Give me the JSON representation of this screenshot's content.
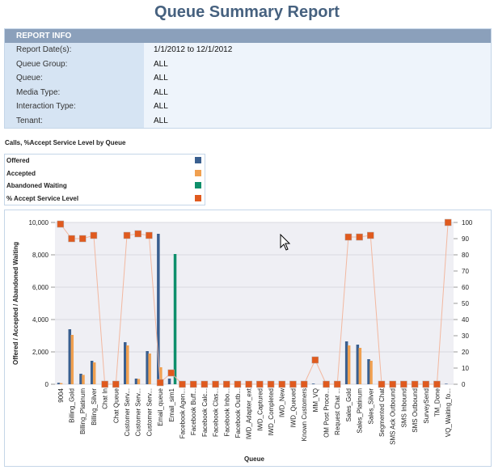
{
  "page": {
    "title": "Queue Summary Report"
  },
  "report_info": {
    "header": "REPORT INFO",
    "rows": [
      {
        "label": "Report Date(s):",
        "value": "1/1/2012  to  12/1/2012"
      },
      {
        "label": "Queue Group:",
        "value": "ALL"
      },
      {
        "label": "Queue:",
        "value": "ALL"
      },
      {
        "label": "Media Type:",
        "value": "ALL"
      },
      {
        "label": "Interaction Type:",
        "value": "ALL"
      },
      {
        "label": "Tenant:",
        "value": "ALL"
      }
    ]
  },
  "chart_data": {
    "type": "bar",
    "title": "Calls, %Accept Service Level by Queue",
    "xlabel": "Queue",
    "ylabel": "Offered / Accepted / Abandoned Waiting",
    "ylim": [
      0,
      10000
    ],
    "y2lim": [
      0,
      100
    ],
    "yticks": [
      "0",
      "2,000",
      "4,000",
      "6,000",
      "8,000",
      "10,000"
    ],
    "y2ticks": [
      "0",
      "10",
      "20",
      "30",
      "40",
      "50",
      "60",
      "70",
      "80",
      "90",
      "100"
    ],
    "grid": true,
    "legend": [
      {
        "name": "Offered",
        "color": "#3a5f8f"
      },
      {
        "name": "Accepted",
        "color": "#f0a050"
      },
      {
        "name": "Abandoned Waiting",
        "color": "#0e8f6b"
      },
      {
        "name": "% Accept Service Level",
        "color": "#e05a1e"
      }
    ],
    "categories": [
      "9004",
      "Billing_Gold",
      "Billing_Platinum",
      "Billing_Silver",
      "Chat In",
      "Chat Queue",
      "Customer Serv...",
      "Customer Serv...",
      "Customer Serv...",
      "Email_queue",
      "Email_sim1",
      "Facebook Agen...",
      "Facebook Buff...",
      "Facebook Calc...",
      "Facebook Clas...",
      "Facebook Inbo...",
      "Facebook Outb...",
      "IWD_Adapter_ext",
      "IWD_Captured",
      "IWD_Completed",
      "IWD_New",
      "IWD_Queued",
      "Known Customers",
      "MM_VQ",
      "OM Post Proce...",
      "Request Chat ...",
      "Sales_Gold",
      "Sales_Platinum",
      "Sales_Silver",
      "Segmented Chat",
      "SMS Ack Outbound",
      "SMS Inbound",
      "SMS Outbound",
      "SurveySend",
      "TM_Done",
      "VQ_Waiting_fo..."
    ],
    "series": [
      {
        "name": "Offered",
        "axis": "left",
        "values": [
          90,
          3400,
          650,
          1450,
          0,
          0,
          2600,
          350,
          2050,
          9300,
          350,
          0,
          0,
          0,
          0,
          0,
          0,
          0,
          0,
          0,
          0,
          0,
          0,
          40,
          0,
          0,
          2650,
          2450,
          1550,
          0,
          0,
          0,
          0,
          0,
          0,
          30
        ]
      },
      {
        "name": "Accepted",
        "axis": "left",
        "values": [
          70,
          3050,
          580,
          1350,
          0,
          0,
          2400,
          330,
          1900,
          1050,
          0,
          0,
          0,
          0,
          0,
          0,
          0,
          0,
          0,
          0,
          0,
          0,
          0,
          0,
          0,
          0,
          2400,
          2250,
          1450,
          0,
          0,
          0,
          0,
          0,
          0,
          0
        ]
      },
      {
        "name": "Abandoned Waiting",
        "axis": "left",
        "values": [
          0,
          0,
          0,
          0,
          0,
          0,
          0,
          0,
          0,
          0,
          8050,
          0,
          0,
          0,
          0,
          0,
          0,
          0,
          0,
          0,
          0,
          0,
          0,
          0,
          0,
          0,
          0,
          0,
          0,
          0,
          0,
          0,
          0,
          0,
          0,
          0
        ]
      },
      {
        "name": "% Accept Service Level",
        "axis": "right",
        "type": "line",
        "values": [
          99,
          90,
          90,
          92,
          0,
          0,
          92,
          93,
          92,
          1,
          7,
          0,
          0,
          0,
          0,
          0,
          0,
          0,
          0,
          0,
          0,
          0,
          0,
          15,
          0,
          0,
          91,
          91,
          92,
          0,
          0,
          0,
          0,
          0,
          0,
          100
        ]
      }
    ]
  }
}
